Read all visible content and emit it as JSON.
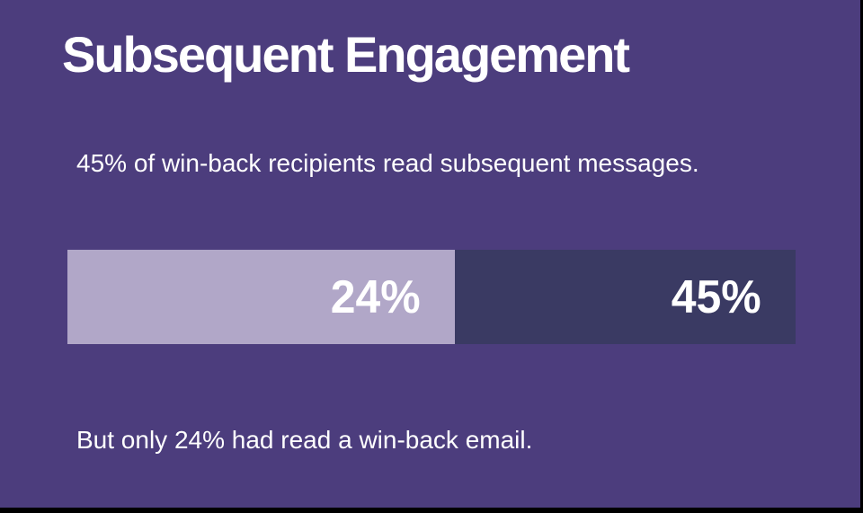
{
  "slide": {
    "title": "Subsequent Engagement",
    "subtitle": "45% of win-back recipients read subsequent messages.",
    "footnote": "But only 24% had read a win-back email."
  },
  "chart_data": {
    "type": "bar",
    "orientation": "horizontal",
    "stacked": true,
    "title": "Subsequent Engagement",
    "annotation_top": "45% of win-back recipients read subsequent messages.",
    "annotation_bottom": "But only 24% had read a win-back email.",
    "legend": "none",
    "axes": "none",
    "grid": false,
    "segments": [
      {
        "name": "read a win-back email",
        "value_pct": 24,
        "data_label": "24%",
        "width_fraction": 0.532,
        "color": "#b1a7c8",
        "label_color": "#ffffff"
      },
      {
        "name": "read subsequent messages",
        "value_pct": 45,
        "data_label": "45%",
        "width_fraction": 0.468,
        "color": "#3a3a63",
        "label_color": "#ffffff"
      }
    ]
  },
  "colors": {
    "background": "#4c3d7d",
    "text": "#ffffff",
    "segment_light": "#b1a7c8",
    "segment_dark": "#3a3a63",
    "frame": "#000000"
  }
}
